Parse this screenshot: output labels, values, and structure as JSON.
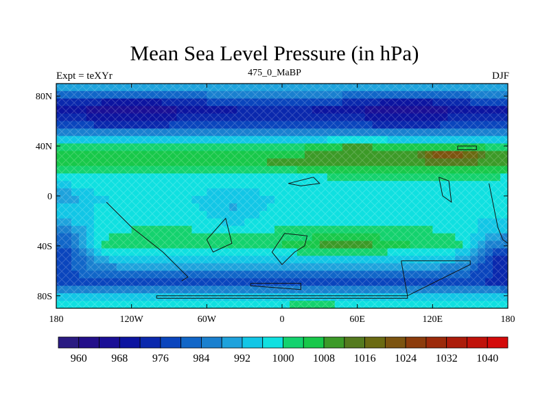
{
  "chart_data": {
    "type": "heatmap",
    "title": "Mean Sea Level Pressure (in hPa)",
    "left_label": "Expt = teXYr",
    "center_label": "475_0_MaBP",
    "right_label": "DJF",
    "x_ticks": [
      "180",
      "120W",
      "60W",
      "0",
      "60E",
      "120E",
      "180"
    ],
    "x_values": [
      -180,
      -120,
      -60,
      0,
      60,
      120,
      180
    ],
    "y_ticks": [
      "80N",
      "40N",
      "0",
      "40S",
      "80S"
    ],
    "y_values": [
      80,
      40,
      0,
      -40,
      -80
    ],
    "xlim": [
      -180,
      180
    ],
    "ylim": [
      -90,
      90
    ],
    "colorbar_labels": [
      "960",
      "968",
      "976",
      "984",
      "992",
      "1000",
      "1008",
      "1016",
      "1024",
      "1032",
      "1040"
    ],
    "colorbar_label_values": [
      960,
      968,
      976,
      984,
      992,
      1000,
      1008,
      1016,
      1024,
      1032,
      1040
    ],
    "colorbar_levels": [
      956,
      960,
      964,
      968,
      972,
      976,
      980,
      984,
      988,
      992,
      996,
      1000,
      1004,
      1008,
      1012,
      1016,
      1020,
      1024,
      1028,
      1032,
      1036,
      1040,
      1044
    ],
    "colorbar_colors": [
      "#2a1b82",
      "#230f8a",
      "#1a0f96",
      "#0c14a0",
      "#0a28ad",
      "#0a45bd",
      "#1166c8",
      "#1a80cf",
      "#1ea2dc",
      "#12c6e6",
      "#10e0e0",
      "#14d26e",
      "#18c84a",
      "#3c9a28",
      "#547a1e",
      "#6a6a12",
      "#7c5410",
      "#8c3c0c",
      "#9c2a0a",
      "#ac1c0a",
      "#c0120a",
      "#d40a0a"
    ],
    "field_description": [
      {
        "lat": 85,
        "pressure": 990
      },
      {
        "lat": 70,
        "pressure": 972
      },
      {
        "lat": 55,
        "pressure": 978
      },
      {
        "lat": 40,
        "pressure": 1002
      },
      {
        "lat": 30,
        "pressure": 1010
      },
      {
        "lat": 15,
        "pressure": 1000
      },
      {
        "lat": 0,
        "pressure": 996
      },
      {
        "lat": -20,
        "pressure": 998
      },
      {
        "lat": -40,
        "pressure": 1004
      },
      {
        "lat": -55,
        "pressure": 990
      },
      {
        "lat": -70,
        "pressure": 978
      },
      {
        "lat": -85,
        "pressure": 1000
      }
    ]
  }
}
